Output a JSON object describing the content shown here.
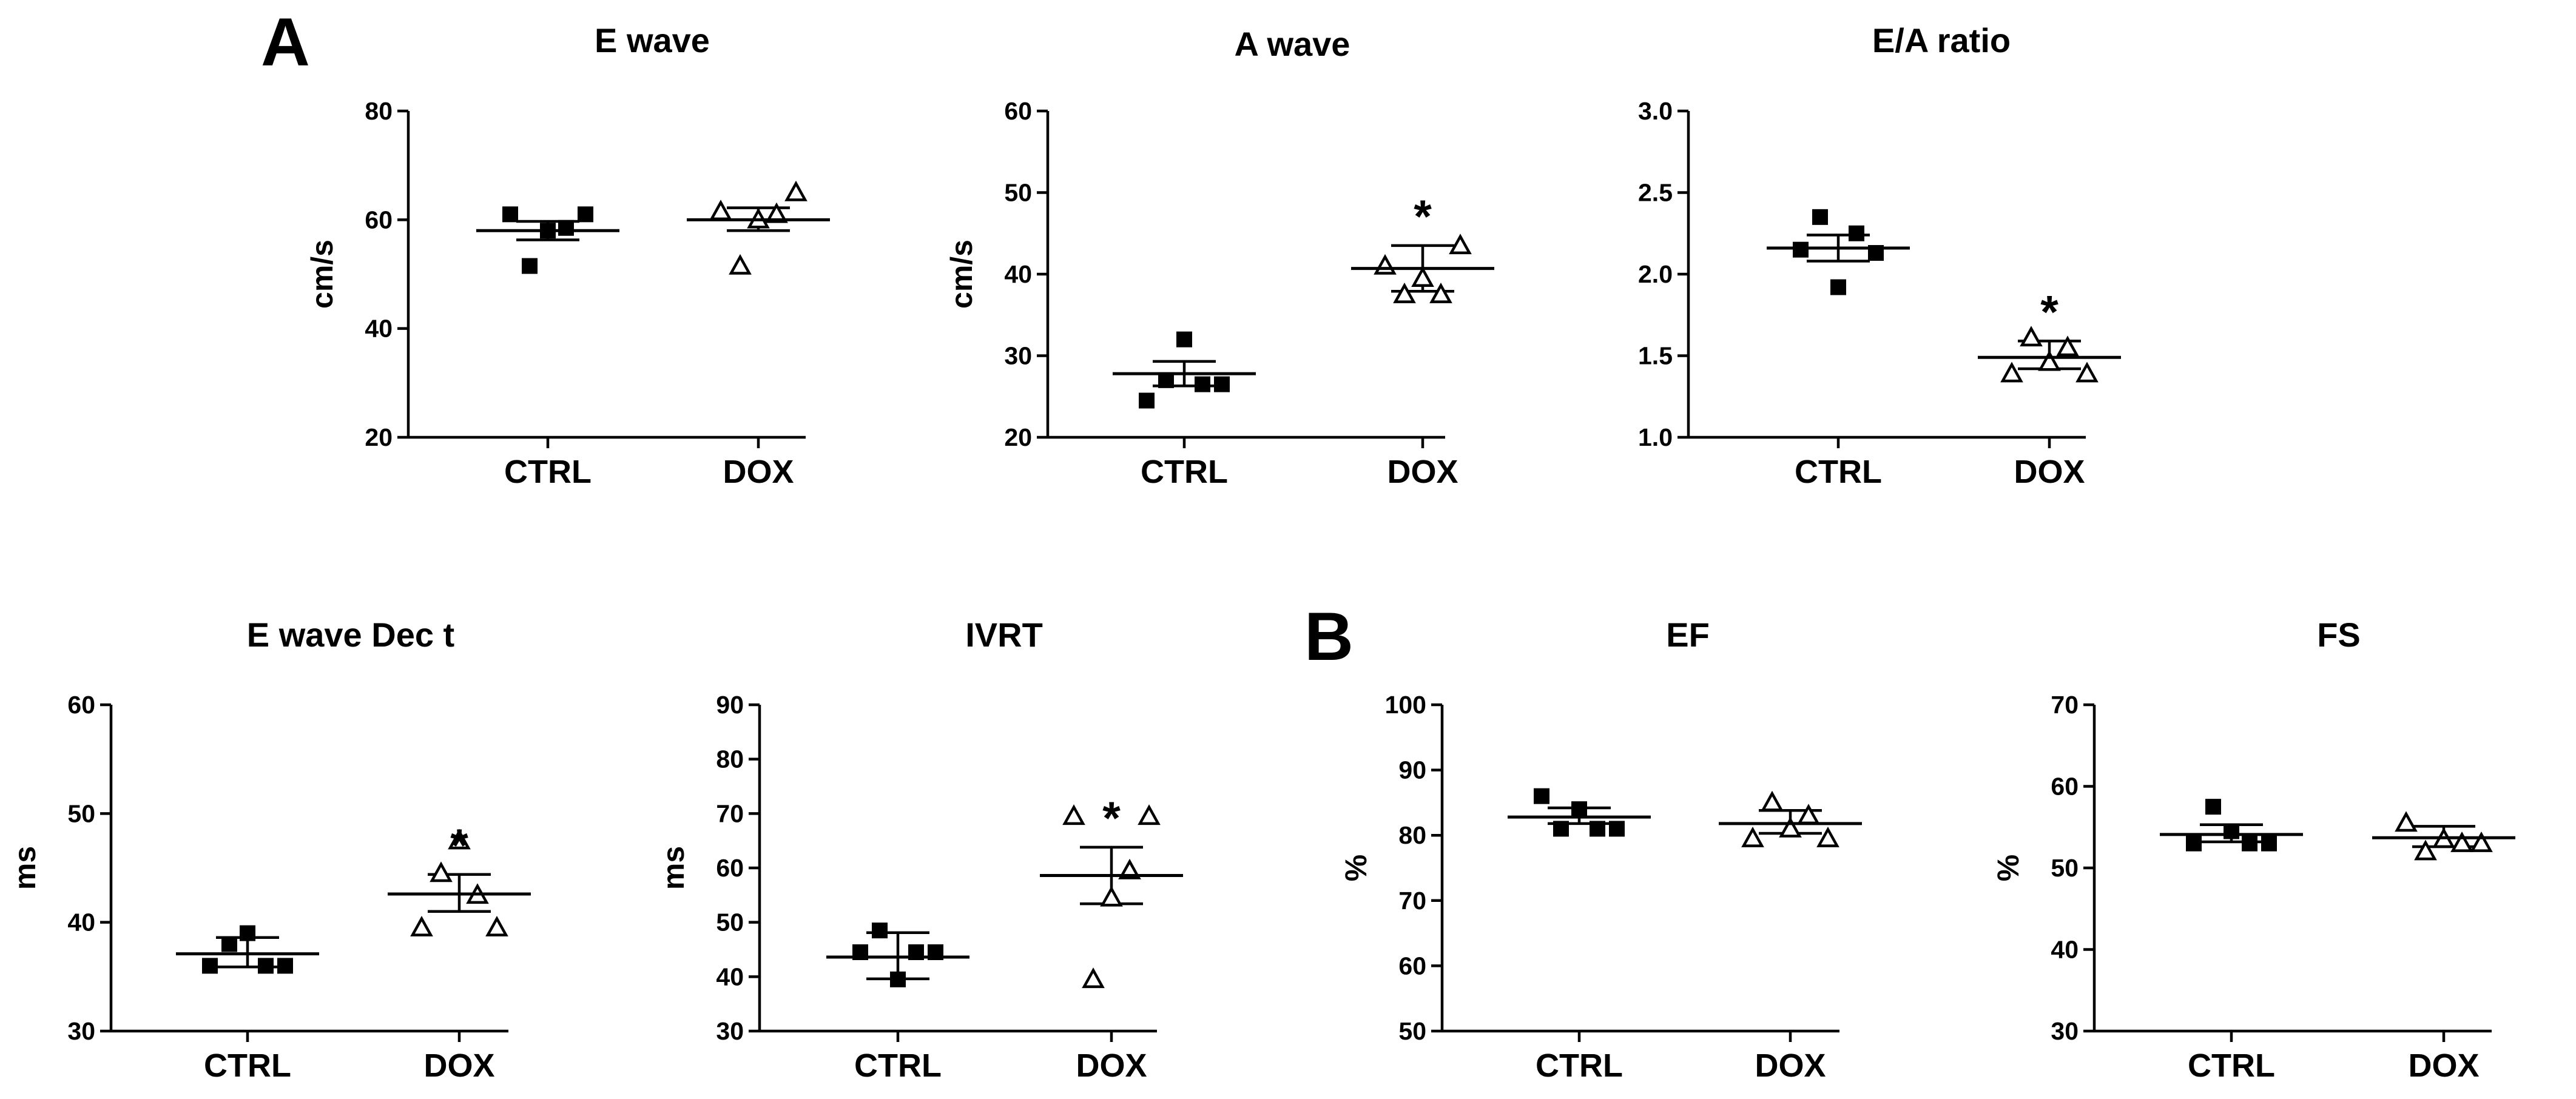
{
  "panels": [
    {
      "letter": "A"
    },
    {
      "letter": "B"
    }
  ],
  "chart_data": [
    {
      "type": "scatter",
      "panel": "A",
      "title": "E wave",
      "ylabel": "cm/s",
      "ylim": [
        20,
        80
      ],
      "yticks": [
        "20",
        "40",
        "60",
        "80"
      ],
      "categories": [
        "CTRL",
        "DOX"
      ],
      "groups": [
        {
          "name": "CTRL",
          "marker": "filled-square",
          "points": [
            61,
            51.5,
            58,
            58.5,
            61
          ],
          "mean": 58,
          "sem_low": 56.3,
          "sem_high": 59.7,
          "significance": ""
        },
        {
          "name": "DOX",
          "marker": "open-triangle",
          "points": [
            61.5,
            51.5,
            60,
            61,
            65
          ],
          "mean": 60,
          "sem_low": 58,
          "sem_high": 62.2,
          "significance": ""
        }
      ]
    },
    {
      "type": "scatter",
      "panel": "A",
      "title": "A wave",
      "ylabel": "cm/s",
      "ylim": [
        20,
        60
      ],
      "yticks": [
        "20",
        "30",
        "40",
        "50",
        "60"
      ],
      "categories": [
        "CTRL",
        "DOX"
      ],
      "groups": [
        {
          "name": "CTRL",
          "marker": "filled-square",
          "points": [
            24.5,
            27,
            32,
            26.5,
            26.5
          ],
          "mean": 27.8,
          "sem_low": 26.3,
          "sem_high": 29.3,
          "significance": ""
        },
        {
          "name": "DOX",
          "marker": "open-triangle",
          "points": [
            41,
            37.5,
            39.5,
            37.5,
            43.5
          ],
          "mean": 40.7,
          "sem_low": 37.9,
          "sem_high": 43.5,
          "significance": "*"
        }
      ]
    },
    {
      "type": "scatter",
      "panel": "A",
      "title": "E/A ratio",
      "ylabel": "",
      "ylim": [
        1.0,
        3.0
      ],
      "yticks": [
        "1.0",
        "1.5",
        "2.0",
        "2.5",
        "3.0"
      ],
      "categories": [
        "CTRL",
        "DOX"
      ],
      "groups": [
        {
          "name": "CTRL",
          "marker": "filled-square",
          "points": [
            2.15,
            2.35,
            1.92,
            2.25,
            2.13
          ],
          "mean": 2.16,
          "sem_low": 2.08,
          "sem_high": 2.24,
          "significance": ""
        },
        {
          "name": "DOX",
          "marker": "open-triangle",
          "points": [
            1.39,
            1.61,
            1.46,
            1.55,
            1.39
          ],
          "mean": 1.49,
          "sem_low": 1.42,
          "sem_high": 1.59,
          "significance": "*"
        }
      ]
    },
    {
      "type": "scatter",
      "panel": "A",
      "title": "E wave Dec t",
      "ylabel": "ms",
      "ylim": [
        30,
        60
      ],
      "yticks": [
        "30",
        "40",
        "50",
        "60"
      ],
      "categories": [
        "CTRL",
        "DOX"
      ],
      "groups": [
        {
          "name": "CTRL",
          "marker": "filled-square",
          "points": [
            36,
            38,
            39,
            36,
            36
          ],
          "mean": 37.1,
          "sem_low": 35.9,
          "sem_high": 38.6,
          "significance": ""
        },
        {
          "name": "DOX",
          "marker": "open-triangle",
          "points": [
            39.5,
            44.5,
            47.5,
            42.5,
            39.5
          ],
          "mean": 42.6,
          "sem_low": 41,
          "sem_high": 44.4,
          "significance": "*"
        }
      ]
    },
    {
      "type": "scatter",
      "panel": "A",
      "title": "IVRT",
      "ylabel": "ms",
      "ylim": [
        30,
        90
      ],
      "yticks": [
        "30",
        "40",
        "50",
        "60",
        "70",
        "80",
        "90"
      ],
      "categories": [
        "CTRL",
        "DOX"
      ],
      "groups": [
        {
          "name": "CTRL",
          "marker": "filled-square",
          "points": [
            44.5,
            48.5,
            39.5,
            44.5,
            44.5
          ],
          "mean": 43.6,
          "sem_low": 39.6,
          "sem_high": 48.1,
          "significance": ""
        },
        {
          "name": "DOX",
          "marker": "open-triangle",
          "points": [
            69.5,
            39.5,
            54.5,
            59.5,
            69.5
          ],
          "mean": 58.6,
          "sem_low": 53.4,
          "sem_high": 63.8,
          "significance": "*"
        }
      ]
    },
    {
      "type": "scatter",
      "panel": "B",
      "title": "EF",
      "ylabel": "%",
      "ylim": [
        50,
        100
      ],
      "yticks": [
        "50",
        "60",
        "70",
        "80",
        "90",
        "100"
      ],
      "categories": [
        "CTRL",
        "DOX"
      ],
      "groups": [
        {
          "name": "CTRL",
          "marker": "filled-square",
          "points": [
            86,
            81,
            84,
            81,
            81
          ],
          "mean": 82.8,
          "sem_low": 81.8,
          "sem_high": 84.2,
          "significance": ""
        },
        {
          "name": "DOX",
          "marker": "open-triangle",
          "points": [
            79.5,
            85,
            81,
            83,
            79.5
          ],
          "mean": 81.8,
          "sem_low": 80.3,
          "sem_high": 83.8,
          "significance": ""
        }
      ]
    },
    {
      "type": "scatter",
      "panel": "B",
      "title": "FS",
      "ylabel": "%",
      "ylim": [
        30,
        70
      ],
      "yticks": [
        "30",
        "40",
        "50",
        "60",
        "70"
      ],
      "categories": [
        "CTRL",
        "DOX"
      ],
      "groups": [
        {
          "name": "CTRL",
          "marker": "filled-square",
          "points": [
            53,
            57.5,
            54.5,
            53,
            53
          ],
          "mean": 54.1,
          "sem_low": 53.2,
          "sem_high": 55.3,
          "significance": ""
        },
        {
          "name": "DOX",
          "marker": "open-triangle",
          "points": [
            55.5,
            52,
            53.5,
            53,
            53
          ],
          "mean": 53.7,
          "sem_low": 52.6,
          "sem_high": 55.1,
          "significance": ""
        }
      ]
    }
  ]
}
